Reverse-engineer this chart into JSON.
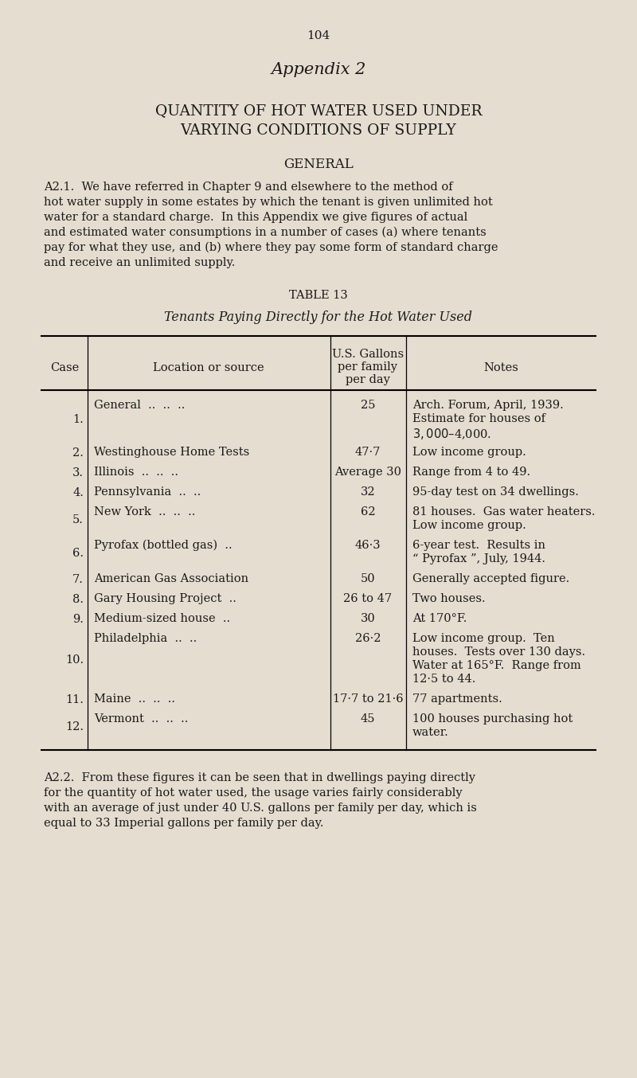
{
  "bg_color": "#e5ddd0",
  "text_color": "#1a1a1a",
  "page_number": "104",
  "appendix_title": "Appendix 2",
  "chapter_title_line1": "QUANTITY OF HOT WATER USED UNDER",
  "chapter_title_line2": "VARYING CONDITIONS OF SUPPLY",
  "section_title": "GENERAL",
  "para_a21_lines": [
    "A2.1.  We have referred in Chapter 9 and elsewhere to the method of",
    "hot water supply in some estates by which the tenant is given unlimited hot",
    "water for a standard charge.  In this Appendix we give figures of actual",
    "and estimated water consumptions in a number of cases (a) where tenants",
    "pay for what they use, and (b) where they pay some form of standard charge",
    "and receive an unlimited supply."
  ],
  "table_label": "TABLE 13",
  "table_subtitle": "Tenants Paying Directly for the Hot Water Used",
  "col_header_case": "Case",
  "col_header_loc": "Location or source",
  "col_header_gal1": "U.S. Gallons",
  "col_header_gal2": "per family",
  "col_header_gal3": "per day",
  "col_header_notes": "Notes",
  "table_rows": [
    {
      "case": "1.",
      "location": "General  ..  ..  ..",
      "gallons": "25",
      "notes_lines": [
        "Arch. Forum, April, 1939.",
        "Estimate for houses of",
        "$3,000–$4,000."
      ]
    },
    {
      "case": "2.",
      "location": "Westinghouse Home Tests",
      "gallons": "47·7",
      "notes_lines": [
        "Low income group."
      ]
    },
    {
      "case": "3.",
      "location": "Illinois  ..  ..  ..",
      "gallons": "Average 30",
      "notes_lines": [
        "Range from 4 to 49."
      ]
    },
    {
      "case": "4.",
      "location": "Pennsylvania  ..  ..",
      "gallons": "32",
      "notes_lines": [
        "95-day test on 34 dwellings."
      ]
    },
    {
      "case": "5.",
      "location": "New York  ..  ..  ..",
      "gallons": "62",
      "notes_lines": [
        "81 houses.  Gas water heaters.",
        "Low income group."
      ]
    },
    {
      "case": "6.",
      "location": "Pyrofax (bottled gas)  ..",
      "gallons": "46·3",
      "notes_lines": [
        "6-year test.  Results in",
        "“ Pyrofax ”, July, 1944."
      ]
    },
    {
      "case": "7.",
      "location": "American Gas Association",
      "gallons": "50",
      "notes_lines": [
        "Generally accepted figure."
      ]
    },
    {
      "case": "8.",
      "location": "Gary Housing Project  ..",
      "gallons": "26 to 47",
      "notes_lines": [
        "Two houses."
      ]
    },
    {
      "case": "9.",
      "location": "Medium-sized house  ..",
      "gallons": "30",
      "notes_lines": [
        "At 170°F."
      ]
    },
    {
      "case": "10.",
      "location": "Philadelphia  ..  ..",
      "gallons": "26·2",
      "notes_lines": [
        "Low income group.  Ten",
        "houses.  Tests over 130 days.",
        "Water at 165°F.  Range from",
        "12·5 to 44."
      ]
    },
    {
      "case": "11.",
      "location": "Maine  ..  ..  ..",
      "gallons": "17·7 to 21·6",
      "notes_lines": [
        "77 apartments."
      ]
    },
    {
      "case": "12.",
      "location": "Vermont  ..  ..  ..",
      "gallons": "45",
      "notes_lines": [
        "100 houses purchasing hot",
        "water."
      ]
    }
  ],
  "para_a22_lines": [
    "A2.2.  From these figures it can be seen that in dwellings paying directly",
    "for the quantity of hot water used, the usage varies fairly considerably",
    "with an average of just under 40 U.S. gallons per family per day, which is",
    "equal to 33 Imperial gallons per family per day."
  ]
}
